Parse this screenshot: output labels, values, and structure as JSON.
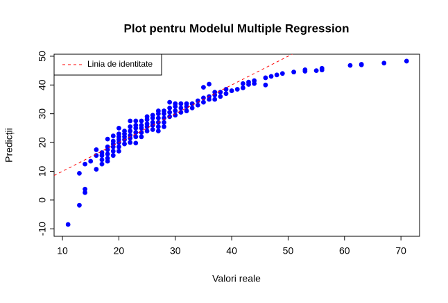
{
  "chart_data": {
    "type": "scatter",
    "title": "Plot pentru Modelul Multiple Regression",
    "xlabel": "Valori reale",
    "ylabel": "Predicții",
    "color": "#0000ff",
    "x": [
      11,
      13,
      13,
      14,
      14,
      14,
      15,
      16,
      16,
      16,
      17,
      17,
      17,
      17,
      18,
      18,
      18,
      18,
      18,
      18,
      19,
      19,
      19,
      19,
      19,
      19,
      20,
      20,
      20,
      20,
      20,
      20,
      20,
      21,
      21,
      21,
      21,
      21,
      22,
      22,
      22,
      22,
      22,
      22,
      23,
      23,
      23,
      23,
      23,
      23,
      24,
      24,
      24,
      24,
      24,
      25,
      25,
      25,
      25,
      25,
      26,
      26,
      26,
      26,
      26,
      27,
      27,
      27,
      27,
      27,
      27,
      28,
      28,
      28,
      28,
      28,
      29,
      29,
      29,
      29,
      30,
      30,
      30,
      30,
      31,
      31,
      31,
      32,
      32,
      32,
      33,
      33,
      34,
      34,
      35,
      35,
      35,
      36,
      36,
      36,
      37,
      37,
      37,
      38,
      38,
      39,
      39,
      40,
      41,
      42,
      42,
      43,
      43,
      44,
      44,
      46,
      46,
      47,
      48,
      49,
      51,
      53,
      53,
      55,
      56,
      56,
      61,
      63,
      63,
      67,
      71
    ],
    "values": [
      -8.5,
      -1.8,
      9.3,
      2.6,
      3.8,
      12.5,
      13.5,
      10.7,
      15.5,
      17.5,
      12.5,
      14,
      15.5,
      16.5,
      13.5,
      14.5,
      16,
      17.5,
      18.5,
      21.2,
      15.5,
      17,
      18.5,
      19.5,
      20.5,
      22.3,
      17,
      18.5,
      20,
      21,
      22,
      23,
      25,
      19.5,
      21,
      22,
      23,
      24,
      20,
      21.5,
      22.5,
      24,
      25.5,
      27.5,
      19.8,
      22,
      23.5,
      25,
      26,
      27.5,
      22,
      23.5,
      25,
      26,
      27.5,
      24,
      25.5,
      26.5,
      28,
      29,
      24.5,
      26,
      27,
      28.5,
      29.5,
      24,
      25.5,
      27,
      28.5,
      30,
      31,
      25.5,
      27,
      28.5,
      30,
      31,
      29,
      30.5,
      32,
      34,
      29.5,
      31,
      32.5,
      33.5,
      30.5,
      32,
      33.5,
      31,
      32.5,
      33.5,
      32,
      33.5,
      33,
      34.5,
      34,
      35.5,
      39.2,
      35,
      36,
      40.3,
      35,
      36.5,
      37.5,
      36,
      37.5,
      37,
      38.5,
      38,
      38.5,
      39,
      40.5,
      40.2,
      41,
      40.5,
      41.5,
      40,
      42.5,
      43,
      43.5,
      44,
      44.5,
      44.8,
      45.3,
      45,
      45.2,
      45.8,
      46.8,
      47,
      47.2,
      47.6,
      48.3
    ],
    "xlim": [
      8.52,
      73.3
    ],
    "ylim": [
      -12.6,
      50.7
    ],
    "xticks": [
      10,
      20,
      30,
      40,
      50,
      60,
      70
    ],
    "yticks": [
      -10,
      0,
      10,
      20,
      30,
      40,
      50
    ],
    "identity_line": {
      "name": "Linia de identitate",
      "color": "#ff0000",
      "style": "dashed"
    },
    "legend": "top-left"
  }
}
